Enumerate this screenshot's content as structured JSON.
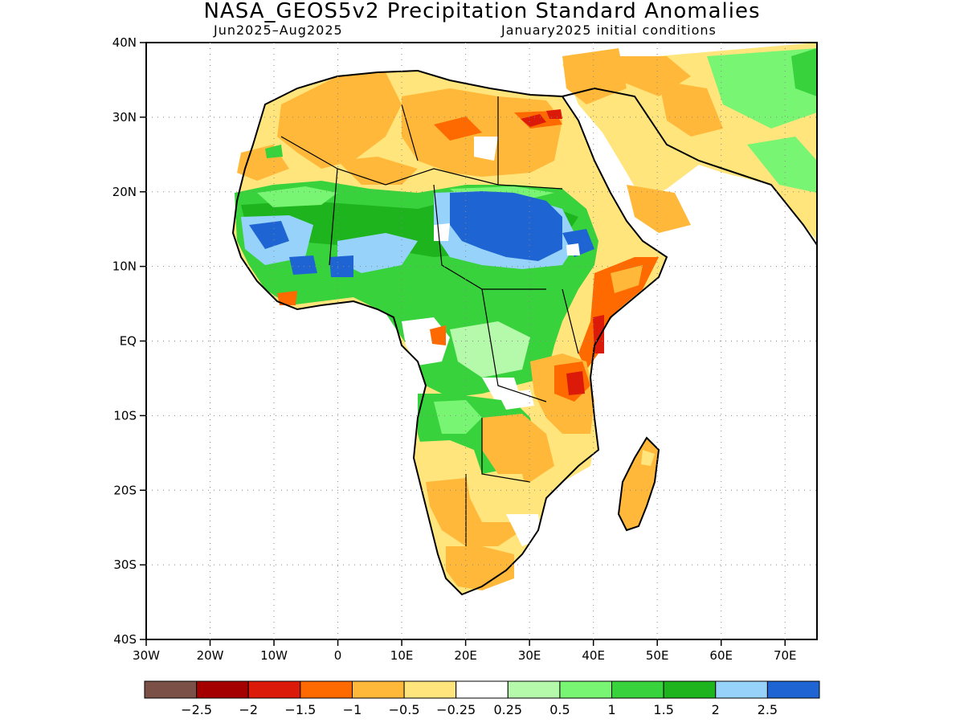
{
  "title": "NASA_GEOS5v2 Precipitation Standard Anomalies",
  "period": "Jun2025–Aug2025",
  "init": "January2025 initial conditions",
  "lat_labels": [
    "40N",
    "30N",
    "20N",
    "10N",
    "EQ",
    "10S",
    "20S",
    "30S",
    "40S"
  ],
  "lon_labels": [
    "30W",
    "20W",
    "10W",
    "0",
    "10E",
    "20E",
    "30E",
    "40E",
    "50E",
    "60E",
    "70E"
  ],
  "colorbar": {
    "colors": [
      "#7a5047",
      "#a50000",
      "#dc1a0a",
      "#ff6a00",
      "#ffb83a",
      "#ffe57c",
      "#ffffff",
      "#b4faaa",
      "#78f572",
      "#37d23c",
      "#1eb41e",
      "#96d2fa",
      "#1e64d2"
    ],
    "labels": [
      "−2.5",
      "−2",
      "−1.5",
      "−1",
      "−0.5",
      "−0.25",
      "0.25",
      "0.5",
      "1",
      "1.5",
      "2",
      "2.5"
    ]
  },
  "map": {
    "lon_range": [
      -30,
      75
    ],
    "lat_range": [
      -40,
      40
    ]
  }
}
